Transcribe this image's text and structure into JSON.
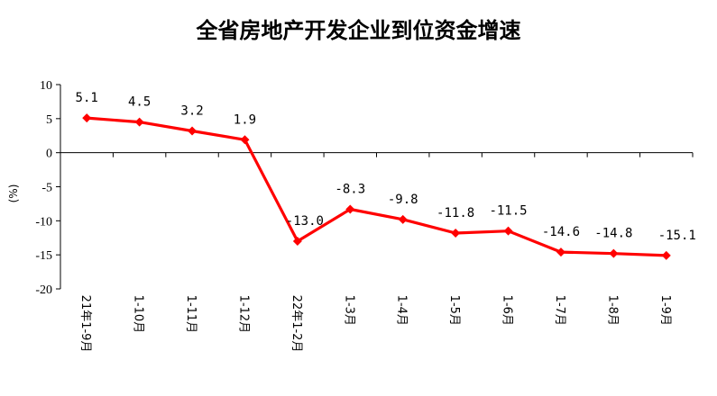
{
  "chart_data": {
    "type": "line",
    "title": "全省房地产开发企业到位资金增速",
    "ylabel": "(%)",
    "xlabel": "",
    "categories": [
      "21年1-9月",
      "1-10月",
      "1-11月",
      "1-12月",
      "22年1-2月",
      "1-3月",
      "1-4月",
      "1-5月",
      "1-6月",
      "1-7月",
      "1-8月",
      "1-9月"
    ],
    "series": [
      {
        "values": [
          5.1,
          4.5,
          3.2,
          1.9,
          -13.0,
          -8.3,
          -9.8,
          -11.8,
          -11.5,
          -14.6,
          -14.8,
          -15.1
        ],
        "labels": [
          "5.1",
          "4.5",
          "3.2",
          "1.9",
          "-13.0",
          "-8.3",
          "-9.8",
          "-11.8",
          "-11.5",
          "-14.6",
          "-14.8",
          "-15.1"
        ]
      }
    ],
    "yticks": [
      "10",
      "5",
      "0",
      "-5",
      "-10",
      "-15",
      "-20"
    ],
    "ylim": [
      -20,
      10
    ],
    "grid": false,
    "colors": {
      "line": "#ff0000",
      "axis": "#000000"
    }
  }
}
